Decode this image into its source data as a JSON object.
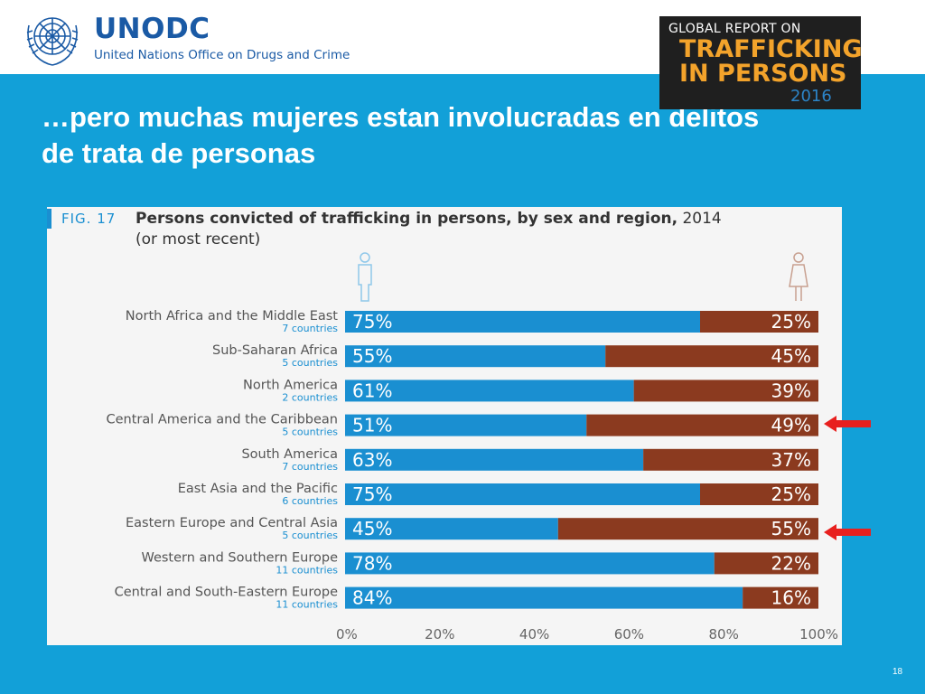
{
  "header": {
    "org_short": "UNODC",
    "org_full": "United Nations Office on Drugs and Crime",
    "report_cover": {
      "line1": "GLOBAL REPORT ON",
      "line2": "TRAFFICKING",
      "line3": "IN PERSONS",
      "year": "2016"
    }
  },
  "slide": {
    "title_line1": "…pero muchas mujeres estan involucradas en delitos",
    "title_line2": "de trata de personas",
    "page_number": "18"
  },
  "figure": {
    "label": "FIG. 17",
    "title_bold": "Persons convicted of trafficking in persons, by sex and region,",
    "title_year": " 2014",
    "subtitle": "(or most recent)"
  },
  "colors": {
    "male": "#1a8fd1",
    "female": "#8b3a1f",
    "accent_blue": "#12a0d8",
    "arrow": "#e8201e"
  },
  "chart_data": {
    "type": "bar",
    "stacked": true,
    "orientation": "horizontal",
    "categories": [
      "North Africa and the Middle East",
      "Sub-Saharan Africa",
      "North America",
      "Central America and the Caribbean",
      "South America",
      "East Asia and the Pacific",
      "Eastern Europe and Central Asia",
      "Western and Southern Europe",
      "Central and South-Eastern Europe"
    ],
    "subcategories": [
      "7 countries",
      "5 countries",
      "2 countries",
      "5 countries",
      "7 countries",
      "6 countries",
      "5 countries",
      "11 countries",
      "11 countries"
    ],
    "series": [
      {
        "values": [
          75,
          55,
          61,
          51,
          63,
          75,
          45,
          78,
          84
        ]
      },
      {
        "values": [
          25,
          45,
          39,
          49,
          37,
          25,
          55,
          22,
          16
        ]
      }
    ],
    "series_icons": [
      "male-figure-icon",
      "female-figure-icon"
    ],
    "value_labels": [
      [
        "75%",
        "55%",
        "61%",
        "51%",
        "63%",
        "75%",
        "45%",
        "78%",
        "84%"
      ],
      [
        "25%",
        "45%",
        "39%",
        "49%",
        "37%",
        "25%",
        "55%",
        "22%",
        "16%"
      ]
    ],
    "x_ticks": [
      "0%",
      "20%",
      "40%",
      "60%",
      "80%",
      "100%"
    ],
    "xlim": [
      0,
      100
    ],
    "highlighted_categories": [
      "Central America and the Caribbean",
      "Eastern Europe and Central Asia"
    ]
  }
}
